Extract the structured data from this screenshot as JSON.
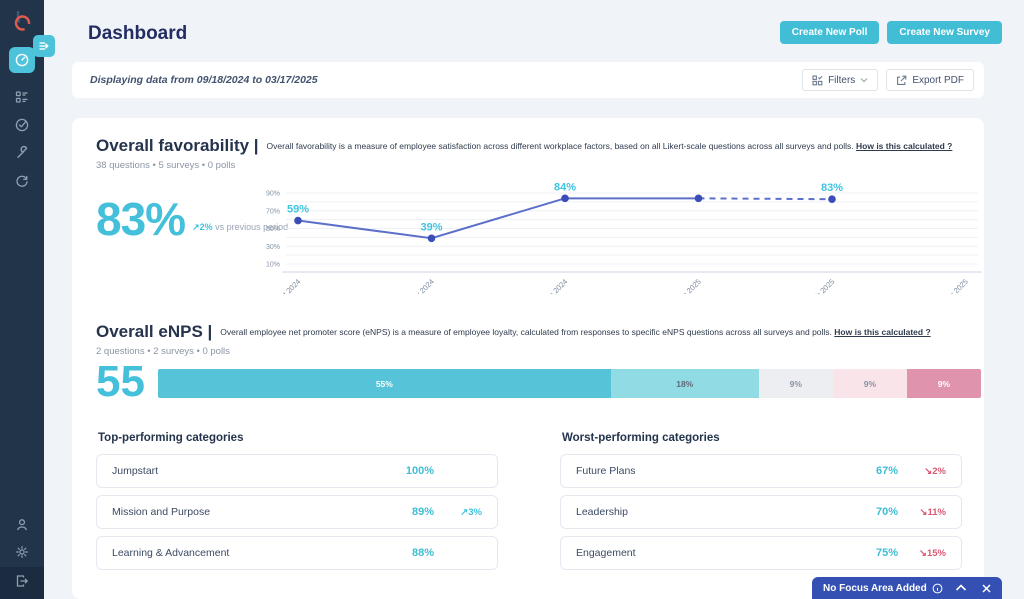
{
  "app": {
    "title": "Dashboard"
  },
  "header": {
    "create_poll_label": "Create New Poll",
    "create_survey_label": "Create New Survey"
  },
  "toolbar": {
    "range_text": "Displaying data from 09/18/2024 to 03/17/2025",
    "filters_label": "Filters",
    "export_label": "Export PDF"
  },
  "sidebar": {
    "icons": [
      "expand-arrow",
      "dashboard-gauge",
      "polls-list",
      "check-circle",
      "wrench",
      "refresh",
      "user",
      "settings-gear",
      "logout"
    ]
  },
  "favorability": {
    "title": "Overall favorability |",
    "description": "Overall favorability is a measure of employee satisfaction across different workplace factors, based on all Likert-scale questions across all surveys and polls.",
    "link": "How is this calculated ?",
    "meta": "38 questions • 5 surveys • 0 polls",
    "score": "83%",
    "delta": "↗2%",
    "delta_caption": " vs previous period"
  },
  "enps": {
    "title": "Overall eNPS |",
    "description": "Overall employee net promoter score (eNPS) is a measure of employee loyalty, calculated from responses to specific eNPS questions across all surveys and polls.",
    "link": "How is this calculated ?",
    "meta": "2 questions • 2 surveys • 0 polls",
    "score": "55"
  },
  "categories": {
    "top": {
      "title": "Top-performing categories",
      "rows": [
        {
          "label": "Jumpstart",
          "value": "100%",
          "delta": "",
          "delta_dir": ""
        },
        {
          "label": "Mission and Purpose",
          "value": "89%",
          "delta": "↗3%",
          "delta_dir": "up"
        },
        {
          "label": "Learning & Advancement",
          "value": "88%",
          "delta": "",
          "delta_dir": ""
        }
      ]
    },
    "worst": {
      "title": "Worst-performing categories",
      "rows": [
        {
          "label": "Future Plans",
          "value": "67%",
          "delta": "↘2%",
          "delta_dir": "down"
        },
        {
          "label": "Leadership",
          "value": "70%",
          "delta": "↘11%",
          "delta_dir": "down"
        },
        {
          "label": "Engagement",
          "value": "75%",
          "delta": "↘15%",
          "delta_dir": "down"
        }
      ]
    }
  },
  "focus_bar": {
    "label": "No Focus Area Added"
  },
  "colors": {
    "accent_teal": "#41bed6",
    "sidebar_bg": "#21344a",
    "title_navy": "#232d64",
    "line_indigo": "#5c70ca",
    "dot_indigo": "#3a4db8",
    "delta_down_pink": "#d95973",
    "focus_bar_blue": "#3350b2"
  },
  "chart_data": [
    {
      "type": "line",
      "title": "Overall favorability trend",
      "x": [
        "Oct 2024",
        "Nov 2024",
        "Dec 2024",
        "Jan 2025",
        "Feb 2025",
        "Mar 2025"
      ],
      "series": [
        {
          "name": "Overall favorability",
          "values": [
            59,
            39,
            84,
            84,
            83,
            null
          ]
        }
      ],
      "point_labels": [
        "59%",
        "39%",
        "84%",
        "",
        "83%",
        ""
      ],
      "dash_start_index": 3,
      "yticks": [
        10,
        30,
        50,
        70,
        90
      ],
      "ytick_suffix": "%",
      "ylim": [
        0,
        100
      ],
      "grid": true,
      "legend": "none",
      "line_color": "#5c70ca",
      "point_color": "#3a4db8",
      "label_color": "#3fc4e0"
    },
    {
      "type": "stacked-bar",
      "title": "eNPS distribution",
      "segments": [
        {
          "label": "55%",
          "value": 55,
          "color": "#56c3d8",
          "text_color": "#ffffff"
        },
        {
          "label": "18%",
          "value": 18,
          "color": "#90dbe4",
          "text_color": "#5e6b78"
        },
        {
          "label": "9%",
          "value": 9,
          "color": "#eceef2",
          "text_color": "#8a93a3"
        },
        {
          "label": "9%",
          "value": 9,
          "color": "#f9e4ea",
          "text_color": "#8a93a3"
        },
        {
          "label": "9%",
          "value": 9,
          "color": "#e093ad",
          "text_color": "#ffffff"
        }
      ]
    }
  ]
}
